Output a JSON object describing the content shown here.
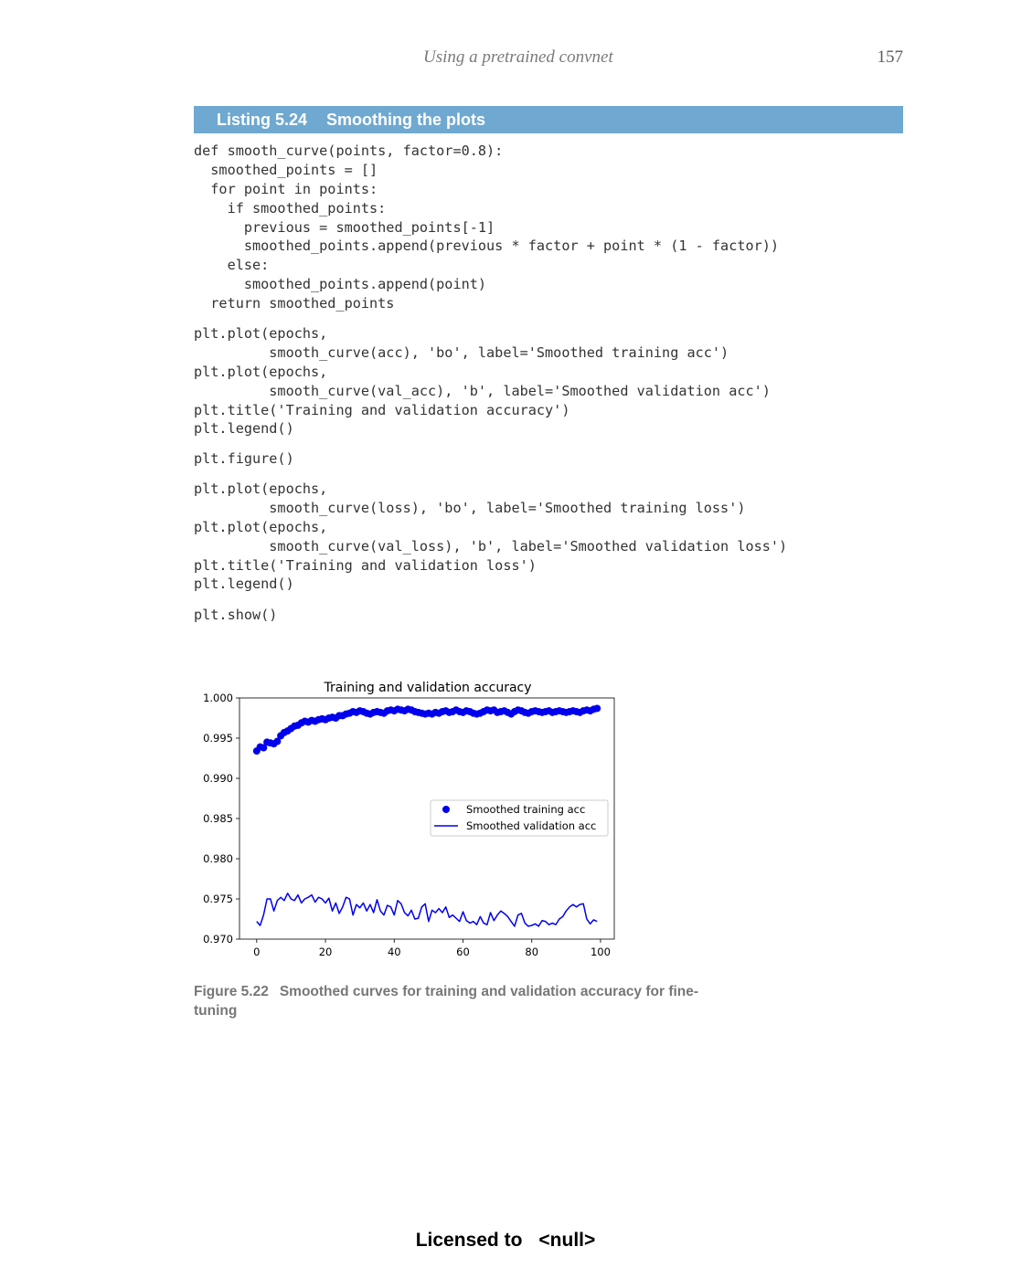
{
  "running_head": {
    "title": "Using a pretrained convnet",
    "page_number": "157"
  },
  "listing": {
    "number": "Listing 5.24",
    "caption": "Smoothing the plots",
    "blocks": [
      [
        "def smooth_curve(points, factor=0.8):",
        "  smoothed_points = []",
        "  for point in points:",
        "    if smoothed_points:",
        "      previous = smoothed_points[-1]",
        "      smoothed_points.append(previous * factor + point * (1 - factor))",
        "    else:",
        "      smoothed_points.append(point)",
        "  return smoothed_points"
      ],
      [
        "plt.plot(epochs,",
        "         smooth_curve(acc), 'bo', label='Smoothed training acc')",
        "plt.plot(epochs,",
        "         smooth_curve(val_acc), 'b', label='Smoothed validation acc')",
        "plt.title('Training and validation accuracy')",
        "plt.legend()"
      ],
      [
        "plt.figure()"
      ],
      [
        "plt.plot(epochs,",
        "         smooth_curve(loss), 'bo', label='Smoothed training loss')",
        "plt.plot(epochs,",
        "         smooth_curve(val_loss), 'b', label='Smoothed validation loss')",
        "plt.title('Training and validation loss')",
        "plt.legend()"
      ],
      [
        "plt.show()"
      ]
    ]
  },
  "figure_caption": {
    "label": "Figure 5.22",
    "text": "Smoothed curves for training and validation accuracy for fine-tuning"
  },
  "footer": {
    "licensed": "Licensed to",
    "user": "<null>"
  },
  "chart_data": {
    "type": "line",
    "title": "Training and validation accuracy",
    "xlabel": "",
    "ylabel": "",
    "xlim": [
      -5,
      104
    ],
    "ylim": [
      0.97,
      1.0
    ],
    "xticks": [
      0,
      20,
      40,
      60,
      80,
      100
    ],
    "yticks": [
      0.97,
      0.975,
      0.98,
      0.985,
      0.99,
      0.995,
      1.0
    ],
    "ytick_labels": [
      "0.970",
      "0.975",
      "0.980",
      "0.985",
      "0.990",
      "0.995",
      "1.000"
    ],
    "legend_position": "center-right",
    "color": "#0000ee",
    "series": [
      {
        "name": "Smoothed training acc",
        "style": "markers",
        "x": [
          0,
          1,
          2,
          3,
          4,
          5,
          6,
          7,
          8,
          9,
          10,
          11,
          12,
          13,
          14,
          15,
          16,
          17,
          18,
          19,
          20,
          21,
          22,
          23,
          24,
          25,
          26,
          27,
          28,
          29,
          30,
          31,
          32,
          33,
          34,
          35,
          36,
          37,
          38,
          39,
          40,
          41,
          42,
          43,
          44,
          45,
          46,
          47,
          48,
          49,
          50,
          51,
          52,
          53,
          54,
          55,
          56,
          57,
          58,
          59,
          60,
          61,
          62,
          63,
          64,
          65,
          66,
          67,
          68,
          69,
          70,
          71,
          72,
          73,
          74,
          75,
          76,
          77,
          78,
          79,
          80,
          81,
          82,
          83,
          84,
          85,
          86,
          87,
          88,
          89,
          90,
          91,
          92,
          93,
          94,
          95,
          96,
          97,
          98,
          99
        ],
        "y": [
          0.9934,
          0.9939,
          0.9938,
          0.9945,
          0.9944,
          0.9943,
          0.9946,
          0.9953,
          0.9957,
          0.9959,
          0.9962,
          0.9965,
          0.9966,
          0.9969,
          0.9971,
          0.997,
          0.9972,
          0.9971,
          0.9973,
          0.9974,
          0.9973,
          0.9975,
          0.9976,
          0.9975,
          0.9978,
          0.9978,
          0.998,
          0.9981,
          0.9983,
          0.9982,
          0.9984,
          0.9983,
          0.9981,
          0.998,
          0.9982,
          0.9983,
          0.9982,
          0.9981,
          0.9984,
          0.9985,
          0.9984,
          0.9986,
          0.9985,
          0.9984,
          0.9986,
          0.9985,
          0.9983,
          0.9982,
          0.9981,
          0.998,
          0.9981,
          0.998,
          0.9982,
          0.9981,
          0.9983,
          0.9984,
          0.9982,
          0.9983,
          0.9985,
          0.9983,
          0.9982,
          0.9984,
          0.9983,
          0.9981,
          0.998,
          0.9981,
          0.9983,
          0.9985,
          0.9984,
          0.9985,
          0.9982,
          0.9983,
          0.9984,
          0.9982,
          0.998,
          0.9983,
          0.9985,
          0.9984,
          0.9982,
          0.9981,
          0.9983,
          0.9984,
          0.9983,
          0.9982,
          0.9983,
          0.9984,
          0.9982,
          0.9983,
          0.9984,
          0.9983,
          0.9982,
          0.9983,
          0.9984,
          0.9983,
          0.9982,
          0.9984,
          0.9985,
          0.9984,
          0.9986,
          0.9987
        ]
      },
      {
        "name": "Smoothed validation acc",
        "style": "line",
        "x": [
          0,
          1,
          2,
          3,
          4,
          5,
          6,
          7,
          8,
          9,
          10,
          11,
          12,
          13,
          14,
          15,
          16,
          17,
          18,
          19,
          20,
          21,
          22,
          23,
          24,
          25,
          26,
          27,
          28,
          29,
          30,
          31,
          32,
          33,
          34,
          35,
          36,
          37,
          38,
          39,
          40,
          41,
          42,
          43,
          44,
          45,
          46,
          47,
          48,
          49,
          50,
          51,
          52,
          53,
          54,
          55,
          56,
          57,
          58,
          59,
          60,
          61,
          62,
          63,
          64,
          65,
          66,
          67,
          68,
          69,
          70,
          71,
          72,
          73,
          74,
          75,
          76,
          77,
          78,
          79,
          80,
          81,
          82,
          83,
          84,
          85,
          86,
          87,
          88,
          89,
          90,
          91,
          92,
          93,
          94,
          95,
          96,
          97,
          98,
          99
        ],
        "y": [
          0.9722,
          0.9717,
          0.973,
          0.975,
          0.975,
          0.9735,
          0.9748,
          0.9752,
          0.9748,
          0.9757,
          0.975,
          0.9748,
          0.9755,
          0.9745,
          0.975,
          0.9752,
          0.9755,
          0.9746,
          0.9752,
          0.975,
          0.9745,
          0.9751,
          0.9735,
          0.9745,
          0.9732,
          0.974,
          0.9752,
          0.975,
          0.973,
          0.9743,
          0.9739,
          0.9745,
          0.9735,
          0.9743,
          0.9733,
          0.9749,
          0.9735,
          0.973,
          0.9742,
          0.974,
          0.973,
          0.9748,
          0.9744,
          0.9733,
          0.9729,
          0.9736,
          0.9725,
          0.9726,
          0.974,
          0.9744,
          0.9722,
          0.9736,
          0.9733,
          0.9738,
          0.9733,
          0.974,
          0.9727,
          0.973,
          0.9726,
          0.9722,
          0.9734,
          0.9723,
          0.972,
          0.9722,
          0.9718,
          0.9728,
          0.972,
          0.9718,
          0.9733,
          0.9723,
          0.973,
          0.9735,
          0.9732,
          0.9728,
          0.9722,
          0.9716,
          0.973,
          0.9732,
          0.972,
          0.9716,
          0.9717,
          0.9719,
          0.9716,
          0.9723,
          0.9722,
          0.9718,
          0.972,
          0.9718,
          0.9725,
          0.9728,
          0.9735,
          0.974,
          0.9743,
          0.974,
          0.9743,
          0.9744,
          0.9725,
          0.9719,
          0.9724,
          0.9722
        ]
      }
    ]
  }
}
